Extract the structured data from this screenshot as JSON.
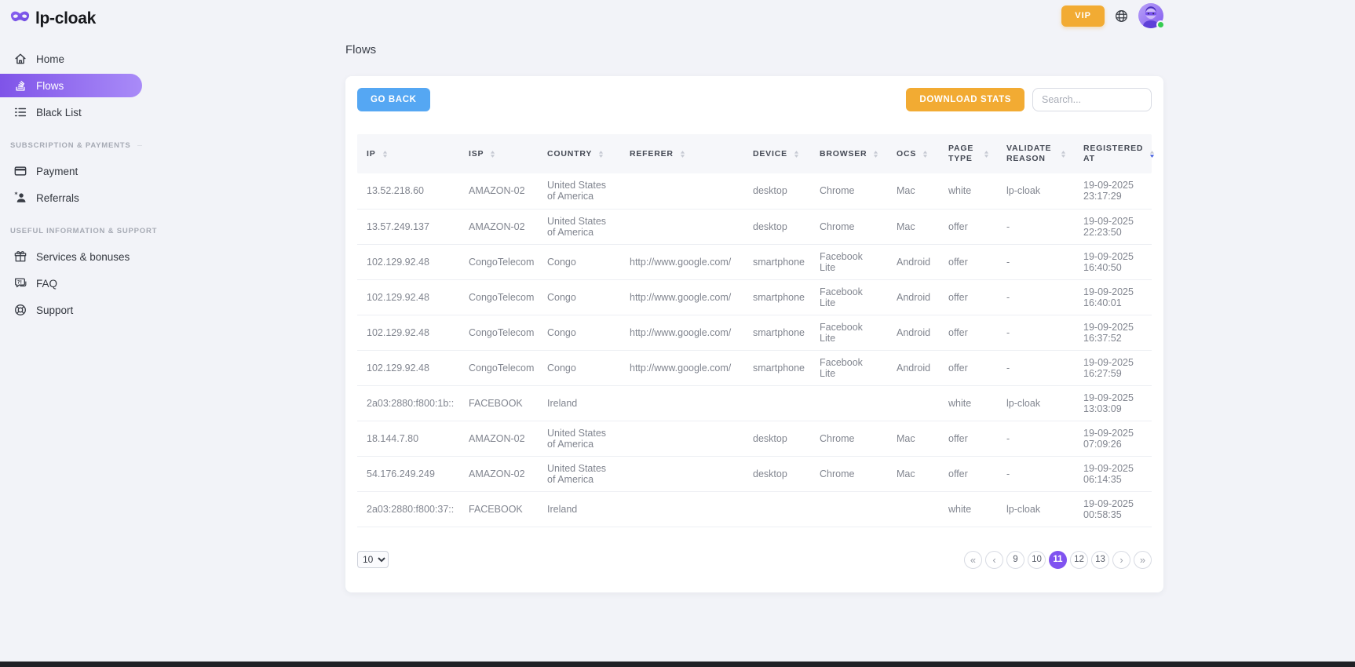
{
  "brand": {
    "name": "lp-cloak",
    "logo_icon": "mask-icon"
  },
  "topbar": {
    "vip_label": "VIP",
    "icons": [
      "globe-icon",
      "avatar"
    ],
    "avatar_status": "online"
  },
  "sidebar": {
    "sections": [
      {
        "title": "",
        "items": [
          {
            "label": "Home",
            "icon": "home-icon",
            "active": false
          },
          {
            "label": "Flows",
            "icon": "flows-icon",
            "active": true
          },
          {
            "label": "Black List",
            "icon": "blacklist-icon",
            "active": false
          }
        ]
      },
      {
        "title": "SUBSCRIPTION & PAYMENTS",
        "items": [
          {
            "label": "Payment",
            "icon": "credit-card-icon",
            "active": false
          },
          {
            "label": "Referrals",
            "icon": "referrals-icon",
            "active": false
          }
        ]
      },
      {
        "title": "USEFUL INFORMATION & SUPPORT",
        "items": [
          {
            "label": "Services & bonuses",
            "icon": "gift-icon",
            "active": false
          },
          {
            "label": "FAQ",
            "icon": "faq-icon",
            "active": false
          },
          {
            "label": "Support",
            "icon": "lifebuoy-icon",
            "active": false
          }
        ]
      }
    ]
  },
  "page": {
    "title": "Flows"
  },
  "toolbar": {
    "go_back": "GO BACK",
    "download_stats": "DOWNLOAD STATS",
    "search_placeholder": "Search..."
  },
  "table": {
    "columns": [
      "IP",
      "ISP",
      "COUNTRY",
      "REFERER",
      "DEVICE",
      "BROWSER",
      "OCS",
      "PAGE TYPE",
      "VALIDATE REASON",
      "REGISTERED AT"
    ],
    "sort": {
      "column": "REGISTERED AT",
      "direction": "desc"
    },
    "rows": [
      {
        "ip": "13.52.218.60",
        "isp": "AMAZON-02",
        "country": "United States of America",
        "referer": "",
        "device": "desktop",
        "browser": "Chrome",
        "ocs": "Mac",
        "page_type": "white",
        "validate_reason": "lp-cloak",
        "registered_at": "19-09-2025\n23:17:29"
      },
      {
        "ip": "13.57.249.137",
        "isp": "AMAZON-02",
        "country": "United States of America",
        "referer": "",
        "device": "desktop",
        "browser": "Chrome",
        "ocs": "Mac",
        "page_type": "offer",
        "validate_reason": "-",
        "registered_at": "19-09-2025\n22:23:50"
      },
      {
        "ip": "102.129.92.48",
        "isp": "CongoTelecom",
        "country": "Congo",
        "referer": "http://www.google.com/",
        "device": "smartphone",
        "browser": "Facebook Lite",
        "ocs": "Android",
        "page_type": "offer",
        "validate_reason": "-",
        "registered_at": "19-09-2025\n16:40:50"
      },
      {
        "ip": "102.129.92.48",
        "isp": "CongoTelecom",
        "country": "Congo",
        "referer": "http://www.google.com/",
        "device": "smartphone",
        "browser": "Facebook Lite",
        "ocs": "Android",
        "page_type": "offer",
        "validate_reason": "-",
        "registered_at": "19-09-2025\n16:40:01"
      },
      {
        "ip": "102.129.92.48",
        "isp": "CongoTelecom",
        "country": "Congo",
        "referer": "http://www.google.com/",
        "device": "smartphone",
        "browser": "Facebook Lite",
        "ocs": "Android",
        "page_type": "offer",
        "validate_reason": "-",
        "registered_at": "19-09-2025\n16:37:52"
      },
      {
        "ip": "102.129.92.48",
        "isp": "CongoTelecom",
        "country": "Congo",
        "referer": "http://www.google.com/",
        "device": "smartphone",
        "browser": "Facebook Lite",
        "ocs": "Android",
        "page_type": "offer",
        "validate_reason": "-",
        "registered_at": "19-09-2025\n16:27:59"
      },
      {
        "ip": "2a03:2880:f800:1b::",
        "isp": "FACEBOOK",
        "country": "Ireland",
        "referer": "",
        "device": "",
        "browser": "",
        "ocs": "",
        "page_type": "white",
        "validate_reason": "lp-cloak",
        "registered_at": "19-09-2025\n13:03:09"
      },
      {
        "ip": "18.144.7.80",
        "isp": "AMAZON-02",
        "country": "United States of America",
        "referer": "",
        "device": "desktop",
        "browser": "Chrome",
        "ocs": "Mac",
        "page_type": "offer",
        "validate_reason": "-",
        "registered_at": "19-09-2025\n07:09:26"
      },
      {
        "ip": "54.176.249.249",
        "isp": "AMAZON-02",
        "country": "United States of America",
        "referer": "",
        "device": "desktop",
        "browser": "Chrome",
        "ocs": "Mac",
        "page_type": "offer",
        "validate_reason": "-",
        "registered_at": "19-09-2025\n06:14:35"
      },
      {
        "ip": "2a03:2880:f800:37::",
        "isp": "FACEBOOK",
        "country": "Ireland",
        "referer": "",
        "device": "",
        "browser": "",
        "ocs": "",
        "page_type": "white",
        "validate_reason": "lp-cloak",
        "registered_at": "19-09-2025\n00:58:35"
      }
    ]
  },
  "pagination": {
    "page_size": "10",
    "buttons": [
      "«",
      "‹",
      "9",
      "10",
      "11",
      "12",
      "13",
      "›",
      "»"
    ],
    "active_page": "11"
  },
  "colors": {
    "accent_purple": "#8053f0",
    "accent_blue": "#55a7f3",
    "accent_amber": "#f2ab33",
    "online_green": "#35cc51",
    "sort_active_blue": "#3f5ae0"
  }
}
